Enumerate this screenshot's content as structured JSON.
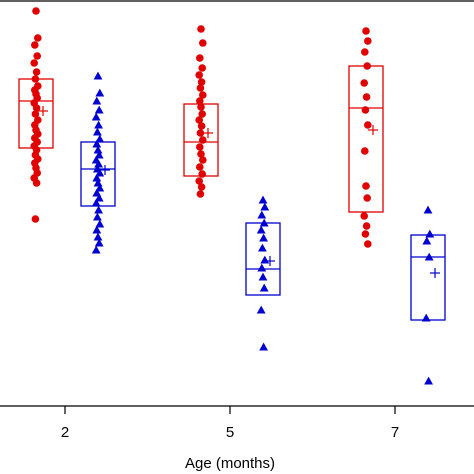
{
  "chart_data": {
    "type": "scatter",
    "subtype": "box-plot-with-jittered-points",
    "xlabel": "Age (months)",
    "ylabel": "",
    "categories": [
      "2",
      "5",
      "7"
    ],
    "ylim": [
      0,
      405
    ],
    "grid": false,
    "legend": "none",
    "series": [
      {
        "marker": "circle",
        "color": "#e00000",
        "groups": [
          {
            "category": "2",
            "points": [
              395,
              368,
              361,
              350,
              343,
              334,
              327,
              320,
              316,
              312,
              308,
              303,
              298,
              292,
              286,
              281,
              276,
              272,
              268,
              264,
              260,
              256,
              251,
              247,
              243,
              238,
              233,
              228,
              223,
              187
            ],
            "box": {
              "q1": 258,
              "median": 305,
              "q3": 327
            },
            "mean": 295
          },
          {
            "category": "5",
            "points": [
              377,
              363,
              348,
              338,
              331,
              324,
              318,
              311,
              305,
              299,
              292,
              286,
              280,
              273,
              266,
              259,
              252,
              246,
              239,
              232,
              225,
              219,
              212
            ],
            "box": {
              "q1": 230,
              "median": 264,
              "q3": 302
            },
            "mean": 273
          },
          {
            "category": "7",
            "points": [
              375,
              365,
              354,
              340,
              323,
              309,
              296,
              281,
              255,
              220,
              208,
              190,
              180,
              172,
              162
            ],
            "box": {
              "q1": 194,
              "median": 298,
              "q3": 340
            },
            "mean": 276
          }
        ]
      },
      {
        "marker": "triangle",
        "color": "#0000d0",
        "groups": [
          {
            "category": "2",
            "points": [
              330,
              313,
              305,
              296,
              289,
              281,
              274,
              267,
              262,
              256,
              251,
              246,
              242,
              237,
              233,
              228,
              223,
              218,
              213,
              208,
              203,
              196,
              189,
              182,
              176,
              169,
              163,
              156
            ],
            "box": {
              "q1": 200,
              "median": 237,
              "q3": 264
            },
            "mean": 236
          },
          {
            "category": "5",
            "points": [
              206,
              199,
              191,
              183,
              176,
              168,
              158,
              146,
              138,
              129,
              118,
              96,
              59
            ],
            "box": {
              "q1": 111,
              "median": 137,
              "q3": 183
            },
            "mean": 145
          },
          {
            "category": "7",
            "points": [
              196,
              172,
              165,
              149,
              88,
              25
            ],
            "box": {
              "q1": 86,
              "median": 149,
              "q3": 171
            },
            "mean": 133
          }
        ]
      }
    ]
  }
}
